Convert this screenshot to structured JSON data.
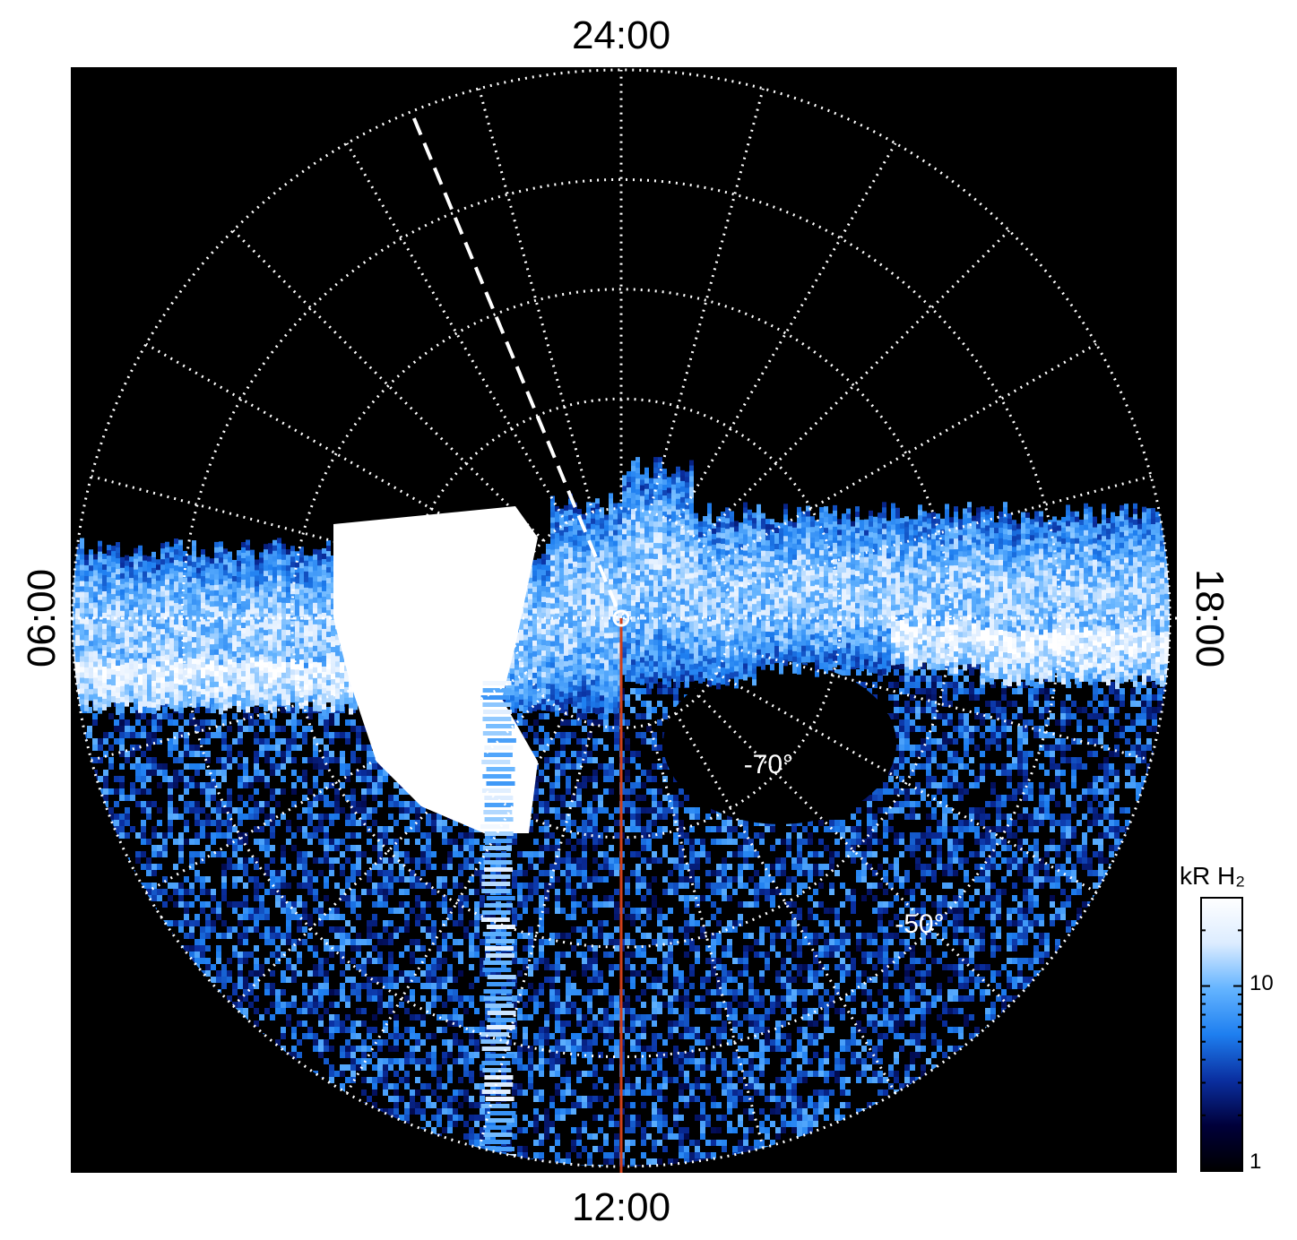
{
  "chart_data": {
    "type": "heatmap",
    "projection": "polar",
    "title": "",
    "local_time_labels": {
      "top": "24:00",
      "bottom": "12:00",
      "left": "06:00",
      "right": "18:00"
    },
    "latitude_circles_deg": [
      -80,
      -70,
      -60,
      -50,
      -40
    ],
    "latitude_labels": [
      "-70°",
      "-50°"
    ],
    "meridian_spacing_hours": 1,
    "grid": true,
    "grid_style": "dotted",
    "highlight_meridian_local_time": "12:00",
    "dashed_meridian_local_time": "01:30",
    "colorbar": {
      "title": "kR H₂",
      "scale": "log",
      "range": [
        1,
        30
      ],
      "tick_labels": [
        "10",
        "1"
      ],
      "colors": [
        "#000000",
        "#00003a",
        "#0a2fa0",
        "#1e7ff0",
        "#64b4ff",
        "#dcecff",
        "#ffffff"
      ]
    },
    "features": [
      "bright emission band across dawn and dusk sectors near the terminator",
      "saturated bright patch in the pre-noon to dawn sector",
      "noisy weak emission on the dayside"
    ]
  },
  "colors": {
    "background": "#000000",
    "grid": "#ffffff",
    "noon_meridian": "#d0401a"
  }
}
